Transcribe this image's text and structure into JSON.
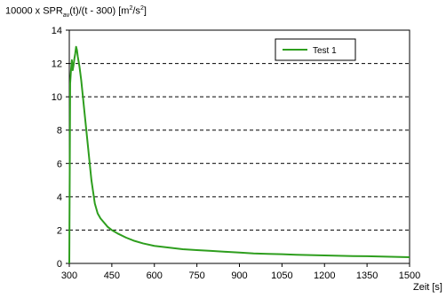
{
  "chart_data": {
    "type": "line",
    "title": "",
    "ylabel": {
      "prefix": "10000 x SPR",
      "subscript": "av",
      "middle": "(t)/(t - 300) [m",
      "superscript1": "2",
      "slash": "/s",
      "superscript2": "2",
      "suffix": "]"
    },
    "xlabel": "Zeit [s]",
    "xlim": [
      300,
      1500
    ],
    "ylim": [
      0,
      14
    ],
    "x_ticks": [
      "300",
      "450",
      "600",
      "750",
      "900",
      "1050",
      "1200",
      "1350",
      "1500"
    ],
    "y_ticks": [
      "0",
      "2",
      "4",
      "6",
      "8",
      "10",
      "12",
      "14"
    ],
    "grid": "horizontal-dashed",
    "legend_placement": "top-right",
    "series": [
      {
        "name": "Test 1",
        "color": "#2e9e1e",
        "x": [
          300,
          303,
          306,
          309,
          312,
          315,
          318,
          321,
          324,
          327,
          330,
          336,
          342,
          348,
          354,
          360,
          366,
          372,
          378,
          384,
          390,
          400,
          410,
          420,
          435,
          450,
          470,
          500,
          530,
          560,
          600,
          650,
          700,
          750,
          800,
          850,
          900,
          950,
          1000,
          1050,
          1100,
          1150,
          1200,
          1250,
          1300,
          1350,
          1400,
          1450,
          1500
        ],
        "y": [
          0,
          10.8,
          11.6,
          12.2,
          11.6,
          11.9,
          12.3,
          12.6,
          13.0,
          12.8,
          12.4,
          11.8,
          11.0,
          10.0,
          9.0,
          8.0,
          7.0,
          6.0,
          5.0,
          4.3,
          3.6,
          3.0,
          2.7,
          2.5,
          2.2,
          2.0,
          1.8,
          1.55,
          1.35,
          1.2,
          1.05,
          0.95,
          0.85,
          0.8,
          0.75,
          0.7,
          0.65,
          0.6,
          0.57,
          0.55,
          0.52,
          0.5,
          0.48,
          0.46,
          0.44,
          0.43,
          0.41,
          0.39,
          0.37
        ]
      }
    ]
  }
}
